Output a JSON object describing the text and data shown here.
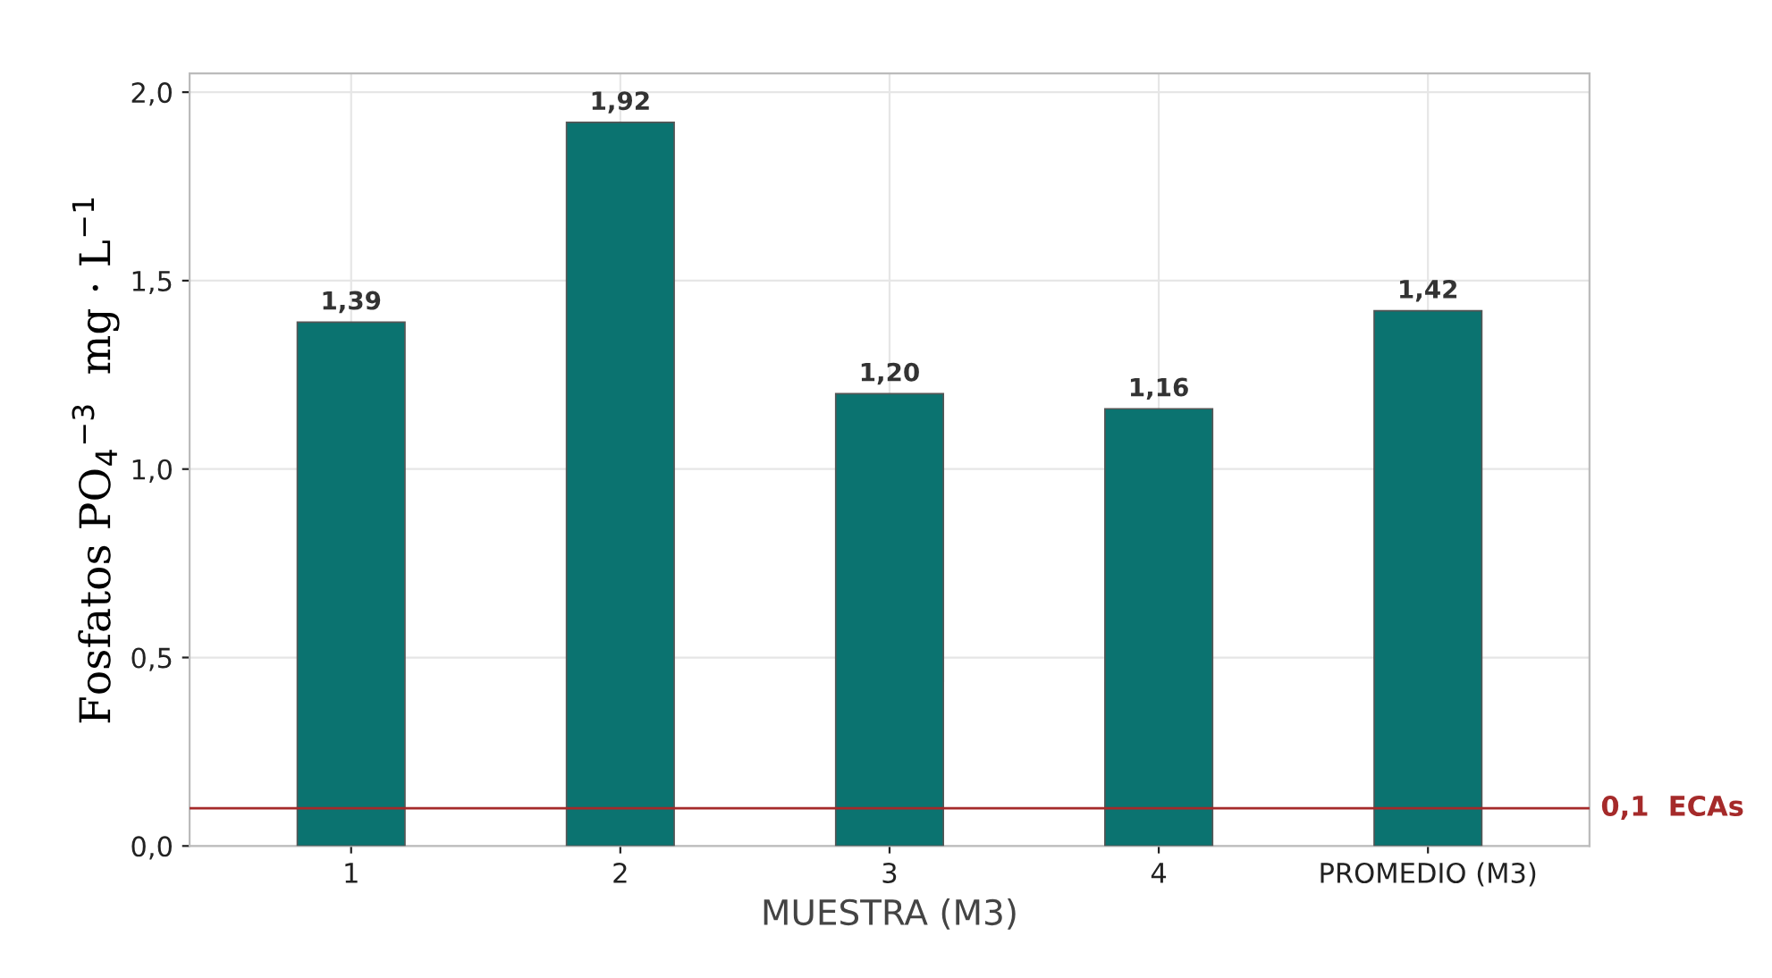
{
  "chart_data": {
    "type": "bar",
    "xlabel": "MUESTRA (M3)",
    "ylabel": "Fosfatos PO$_{4}$$^{−3}$  mg · L$^{−1}$",
    "categories": [
      "1",
      "2",
      "3",
      "4",
      "PROMEDIO (M3)"
    ],
    "values": [
      1.39,
      1.92,
      1.2,
      1.16,
      1.42
    ],
    "value_labels": [
      "1,39",
      "1,92",
      "1,20",
      "1,16",
      "1,42"
    ],
    "color": "#0b7370",
    "ylim": [
      0,
      2.05
    ],
    "yticks": [
      {
        "value": 0,
        "label": "0,0"
      },
      {
        "value": 0.5,
        "label": "0,5"
      },
      {
        "value": 1.0,
        "label": "1,0"
      },
      {
        "value": 1.5,
        "label": "1,5"
      },
      {
        "value": 2.0,
        "label": "2,0"
      }
    ],
    "ref_lines": [
      {
        "axis": "y",
        "value": 0.1,
        "label": "0,1  ECAs",
        "color": "#a52a2a"
      }
    ],
    "grid": true,
    "legend": false
  }
}
